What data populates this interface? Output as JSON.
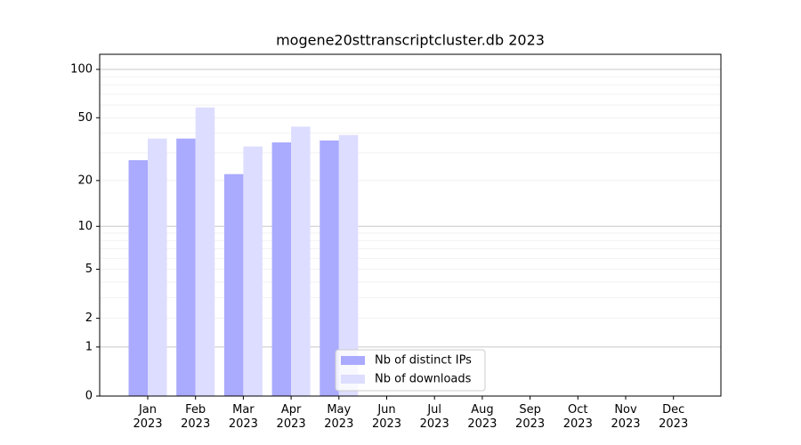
{
  "chart_data": {
    "type": "bar",
    "title": "mogene20sttranscriptcluster.db 2023",
    "categories": [
      "Jan\n2023",
      "Feb\n2023",
      "Mar\n2023",
      "Apr\n2023",
      "May\n2023",
      "Jun\n2023",
      "Jul\n2023",
      "Aug\n2023",
      "Sep\n2023",
      "Oct\n2023",
      "Nov\n2023",
      "Dec\n2023"
    ],
    "series": [
      {
        "name": "Nb of distinct IPs",
        "color": "#aaaaff",
        "values": [
          27,
          37,
          22,
          35,
          36,
          null,
          null,
          null,
          null,
          null,
          null,
          null
        ]
      },
      {
        "name": "Nb of downloads",
        "color": "#ddddff",
        "values": [
          37,
          58,
          33,
          44,
          39,
          null,
          null,
          null,
          null,
          null,
          null,
          null
        ]
      }
    ],
    "yscale": "log1p",
    "ylim": [
      0,
      124
    ],
    "yticks": [
      0,
      1,
      2,
      5,
      10,
      20,
      50,
      100
    ],
    "major_grid": [
      1,
      10,
      100
    ],
    "minor_grid": [
      2,
      3,
      4,
      5,
      6,
      7,
      8,
      9,
      20,
      30,
      40,
      50,
      60,
      70,
      80,
      90
    ],
    "legend": "lower center"
  }
}
